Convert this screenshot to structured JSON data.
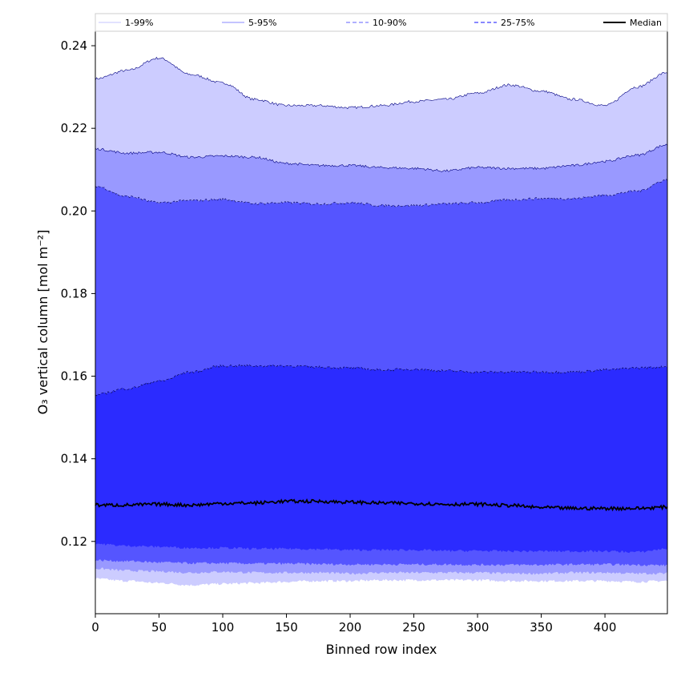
{
  "chart_data": {
    "type": "area",
    "xlabel": "Binned row index",
    "ylabel": "O₃ vertical column [mol m⁻²]",
    "xlim": [
      0,
      449
    ],
    "ylim": [
      0.1025,
      0.2435
    ],
    "x_ticks": [
      0,
      50,
      100,
      150,
      200,
      250,
      300,
      350,
      400
    ],
    "y_ticks": [
      0.12,
      0.14,
      0.16,
      0.18,
      0.2,
      0.22,
      0.24
    ],
    "y_tick_labels": [
      "0.12",
      "0.14",
      "0.16",
      "0.18",
      "0.20",
      "0.22",
      "0.24"
    ],
    "grid": false,
    "legend_position": "top",
    "x": [
      0,
      25,
      50,
      75,
      100,
      125,
      150,
      175,
      200,
      225,
      250,
      275,
      300,
      325,
      350,
      375,
      400,
      425,
      449
    ],
    "bands": [
      {
        "name": "1-99%",
        "color": "#ccccff",
        "line_color": "#000080",
        "line_style": "solid",
        "lower": [
          0.111,
          0.1105,
          0.11,
          0.1095,
          0.1098,
          0.11,
          0.1103,
          0.1105,
          0.1105,
          0.1107,
          0.1107,
          0.1107,
          0.1107,
          0.1105,
          0.1105,
          0.1105,
          0.1105,
          0.1103,
          0.1105
        ],
        "upper": [
          0.232,
          0.234,
          0.237,
          0.233,
          0.231,
          0.227,
          0.2255,
          0.2255,
          0.225,
          0.2255,
          0.2265,
          0.227,
          0.2285,
          0.2305,
          0.229,
          0.227,
          0.2255,
          0.23,
          0.2335
        ]
      },
      {
        "name": "5-95%",
        "color": "#9999ff",
        "line_color": "#000080",
        "line_style": "solid",
        "lower": [
          0.1135,
          0.113,
          0.1128,
          0.1125,
          0.1127,
          0.1125,
          0.1125,
          0.1125,
          0.1123,
          0.1125,
          0.1125,
          0.1125,
          0.1125,
          0.1123,
          0.1123,
          0.1125,
          0.1125,
          0.1123,
          0.1123
        ],
        "upper": [
          0.215,
          0.214,
          0.2142,
          0.213,
          0.2133,
          0.213,
          0.2115,
          0.211,
          0.211,
          0.2105,
          0.2103,
          0.2097,
          0.2105,
          0.2103,
          0.2103,
          0.211,
          0.212,
          0.2135,
          0.216
        ]
      },
      {
        "name": "10-90%",
        "color": "#5555ff",
        "line_color": "#000050",
        "line_style": "dashed",
        "lower": [
          0.1155,
          0.1153,
          0.115,
          0.1148,
          0.1148,
          0.1147,
          0.1147,
          0.1146,
          0.1145,
          0.1145,
          0.1145,
          0.1145,
          0.1144,
          0.1144,
          0.1144,
          0.1145,
          0.1145,
          0.1144,
          0.1143
        ],
        "upper": [
          0.206,
          0.2035,
          0.202,
          0.2025,
          0.2028,
          0.2018,
          0.202,
          0.2017,
          0.202,
          0.2013,
          0.2013,
          0.2017,
          0.202,
          0.2027,
          0.203,
          0.203,
          0.2038,
          0.2048,
          0.2075
        ]
      },
      {
        "name": "25-75%",
        "color": "#2b2bff",
        "line_color": "#000040",
        "line_style": "dashed",
        "lower": [
          0.1195,
          0.119,
          0.1188,
          0.1185,
          0.1185,
          0.1183,
          0.1183,
          0.1182,
          0.118,
          0.118,
          0.118,
          0.1178,
          0.1178,
          0.1177,
          0.1177,
          0.1177,
          0.1177,
          0.1175,
          0.1183
        ],
        "upper": [
          0.1555,
          0.157,
          0.1588,
          0.161,
          0.1625,
          0.1625,
          0.1625,
          0.1622,
          0.162,
          0.1615,
          0.1617,
          0.1613,
          0.161,
          0.161,
          0.161,
          0.161,
          0.1615,
          0.162,
          0.1623
        ]
      }
    ],
    "median": {
      "name": "Median",
      "color": "#000000",
      "values": [
        0.1288,
        0.1288,
        0.129,
        0.1288,
        0.1292,
        0.1293,
        0.1297,
        0.1297,
        0.1295,
        0.1293,
        0.1292,
        0.129,
        0.129,
        0.1287,
        0.1282,
        0.128,
        0.128,
        0.128,
        0.1283
      ]
    },
    "legend": [
      {
        "label": "1-99%",
        "color": "#d0d0ff",
        "style": "solid"
      },
      {
        "label": "5-95%",
        "color": "#a0a0ff",
        "style": "solid"
      },
      {
        "label": "10-90%",
        "color": "#8080ff",
        "style": "dashed"
      },
      {
        "label": "25-75%",
        "color": "#4040ff",
        "style": "dashed"
      },
      {
        "label": "Median",
        "color": "#000000",
        "style": "solid"
      }
    ]
  }
}
